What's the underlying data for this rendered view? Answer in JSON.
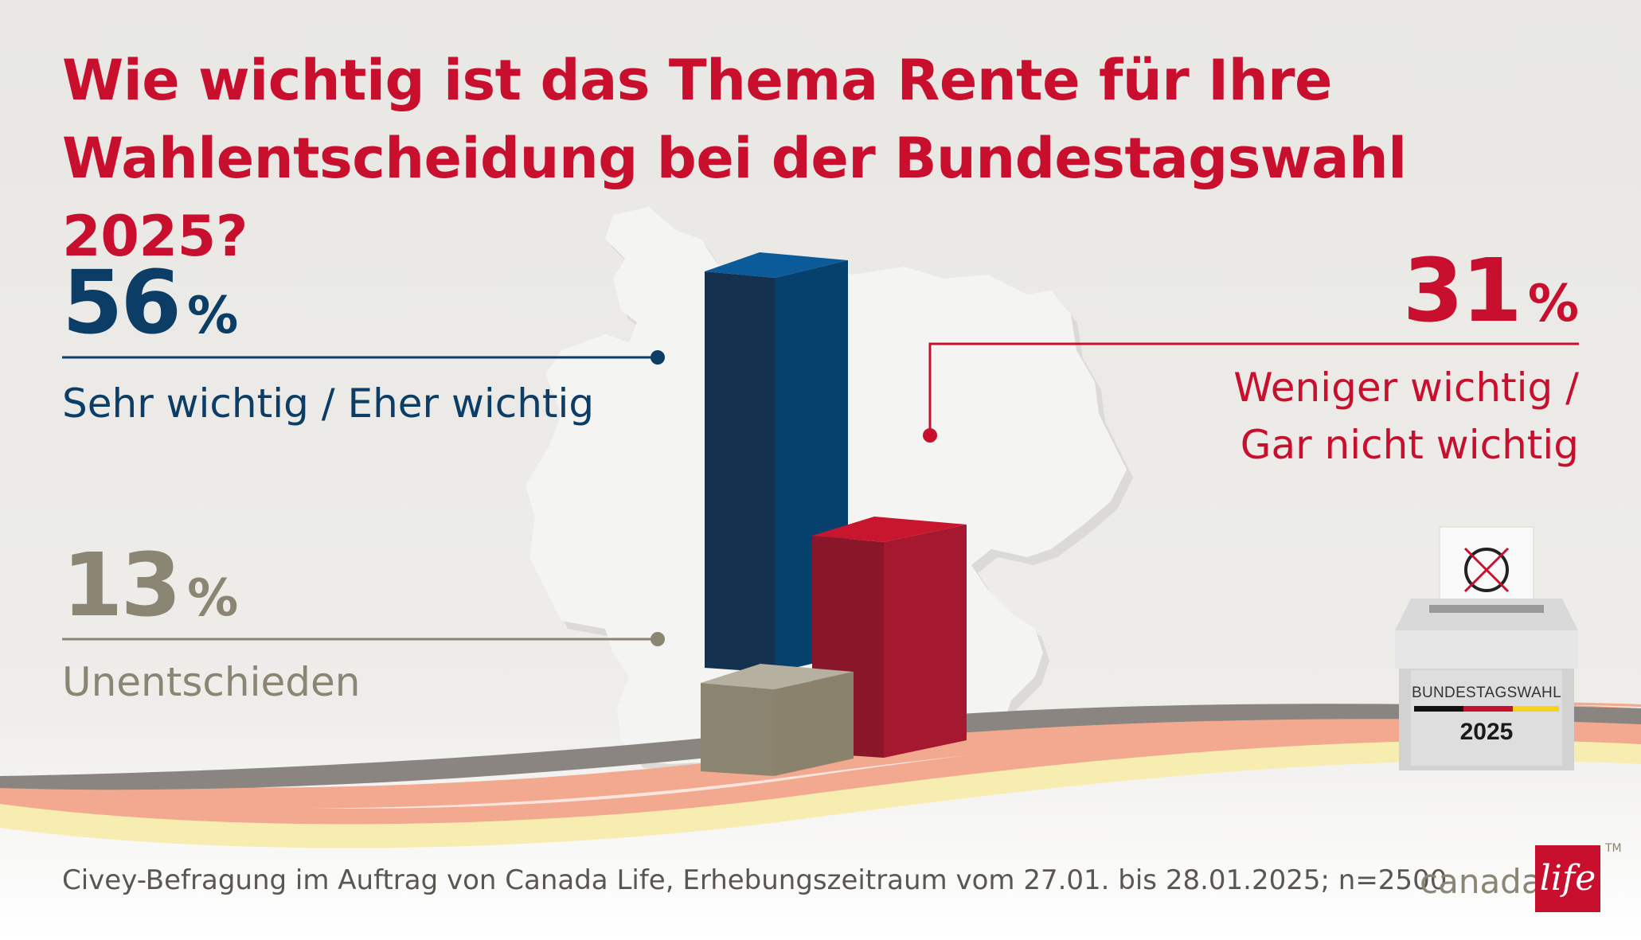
{
  "title_lines": [
    "Wie wichtig ist das Thema Rente für Ihre",
    "Wahlentscheidung bei der Bundestagswahl 2025?"
  ],
  "items": [
    {
      "value": "56",
      "unit": "%",
      "label_lines": [
        "Sehr wichtig / Eher wichtig"
      ],
      "color": "#0b3d66"
    },
    {
      "value": "31",
      "unit": "%",
      "label_lines": [
        "Weniger wichtig /",
        "Gar nicht wichtig"
      ],
      "color": "#c8102e"
    },
    {
      "value": "13",
      "unit": "%",
      "label_lines": [
        "Unentschieden"
      ],
      "color": "#8b8574"
    }
  ],
  "footer": "Civey-Befragung im Auftrag von Canada Life, Erhebungszeitraum vom 27.01. bis 28.01.2025; n=2500",
  "logo": {
    "text": "canada",
    "box_text": "life",
    "tm": "TM"
  },
  "ballot_box": {
    "title": "BUNDESTAGSWAHL",
    "year": "2025"
  },
  "chart_data": {
    "type": "bar",
    "categories": [
      "Sehr wichtig / Eher wichtig",
      "Weniger wichtig / Gar nicht wichtig",
      "Unentschieden"
    ],
    "values": [
      56,
      31,
      13
    ],
    "unit": "%",
    "colors": [
      "#0b3d66",
      "#c8102e",
      "#8b8574"
    ]
  }
}
